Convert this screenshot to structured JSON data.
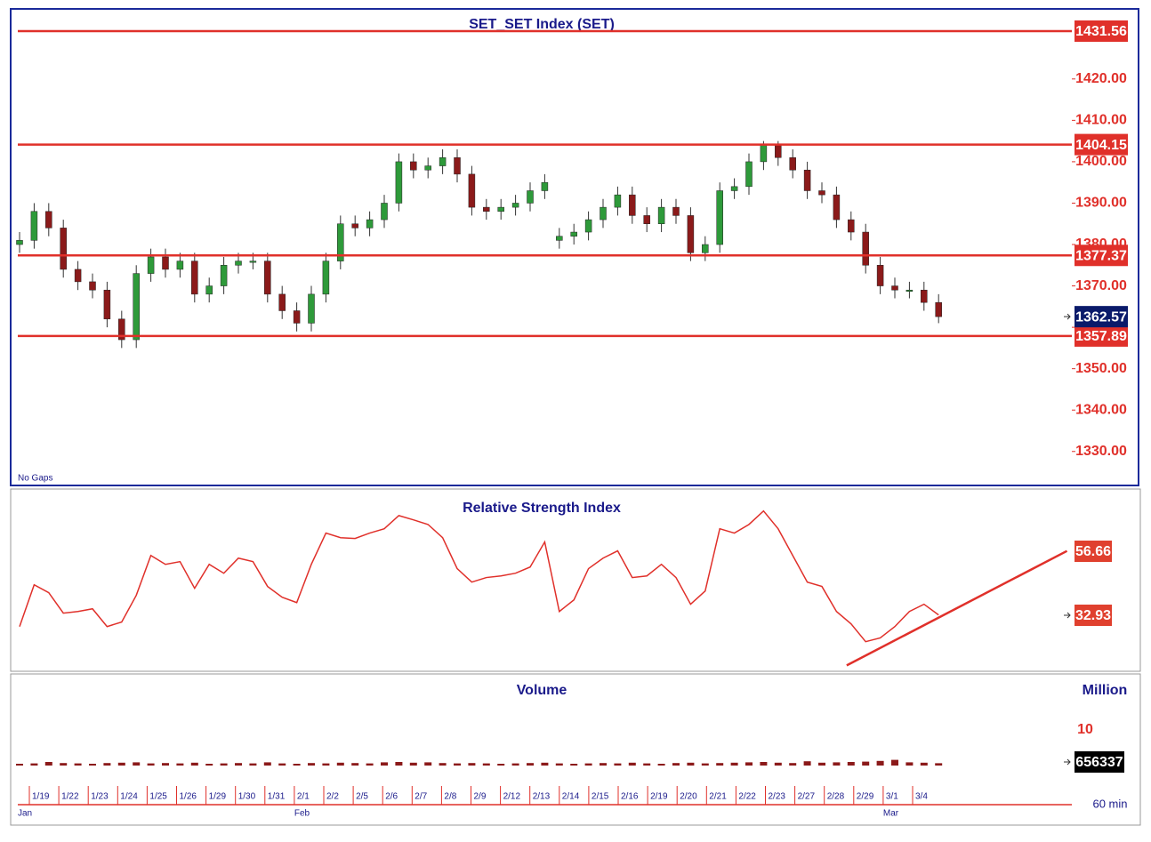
{
  "chart_data": [
    {
      "type": "candlestick",
      "title": "SET_SET Index (SET)",
      "note": "No Gaps",
      "open": [
        1380,
        1381,
        1388,
        1384,
        1374,
        1371,
        1369,
        1362,
        1357,
        1373,
        1377,
        1374,
        1376,
        1368,
        1370,
        1375,
        1376,
        1376,
        1368,
        1364,
        1361,
        1368,
        1376,
        1385,
        1384,
        1386,
        1390,
        1400,
        1398,
        1399,
        1401,
        1397,
        1389,
        1388,
        1389,
        1390,
        1393,
        1381,
        1382,
        1383,
        1386,
        1389,
        1392,
        1387,
        1385,
        1389,
        1387,
        1378,
        1380,
        1393,
        1394,
        1400,
        1404,
        1401,
        1398,
        1393,
        1392,
        1386,
        1383,
        1375,
        1370,
        1369,
        1369,
        1366
      ],
      "high": [
        1383,
        1390,
        1390,
        1386,
        1376,
        1373,
        1371,
        1364,
        1375,
        1379,
        1379,
        1378,
        1378,
        1372,
        1377,
        1378,
        1378,
        1378,
        1370,
        1366,
        1370,
        1378,
        1387,
        1387,
        1388,
        1392,
        1402,
        1402,
        1401,
        1403,
        1403,
        1399,
        1391,
        1391,
        1392,
        1395,
        1397,
        1384,
        1385,
        1388,
        1391,
        1394,
        1394,
        1389,
        1391,
        1391,
        1389,
        1382,
        1395,
        1396,
        1402,
        1405,
        1405,
        1403,
        1400,
        1395,
        1394,
        1388,
        1385,
        1377,
        1372,
        1371,
        1371,
        1368
      ],
      "low": [
        1378,
        1379,
        1382,
        1372,
        1369,
        1367,
        1360,
        1355,
        1355,
        1371,
        1372,
        1372,
        1366,
        1366,
        1368,
        1373,
        1374,
        1366,
        1362,
        1359,
        1359,
        1366,
        1374,
        1382,
        1382,
        1384,
        1388,
        1396,
        1396,
        1397,
        1395,
        1387,
        1386,
        1386,
        1387,
        1388,
        1391,
        1379,
        1380,
        1381,
        1384,
        1387,
        1385,
        1383,
        1383,
        1385,
        1376,
        1376,
        1378,
        1391,
        1392,
        1398,
        1399,
        1396,
        1391,
        1390,
        1384,
        1381,
        1373,
        1368,
        1367,
        1367,
        1364,
        1361
      ],
      "close": [
        1381,
        1388,
        1384,
        1374,
        1371,
        1369,
        1362,
        1357,
        1373,
        1377,
        1374,
        1376,
        1368,
        1370,
        1375,
        1376,
        1376,
        1368,
        1364,
        1361,
        1368,
        1376,
        1385,
        1384,
        1386,
        1390,
        1400,
        1398,
        1399,
        1401,
        1397,
        1389,
        1388,
        1389,
        1390,
        1393,
        1395,
        1382,
        1383,
        1386,
        1389,
        1392,
        1387,
        1385,
        1389,
        1387,
        1378,
        1380,
        1393,
        1394,
        1400,
        1404,
        1401,
        1398,
        1393,
        1392,
        1386,
        1383,
        1375,
        1370,
        1369,
        1369,
        1366,
        1362.57
      ],
      "up_color": "#2e9a3a",
      "down_color": "#8b1a1a",
      "ylim": [
        1322,
        1436.5
      ],
      "yticks": [
        {
          "value": 1330,
          "label": "1330.00"
        },
        {
          "value": 1340,
          "label": "1340.00"
        },
        {
          "value": 1350,
          "label": "1350.00"
        },
        {
          "value": 1360,
          "label": "1360.00"
        },
        {
          "value": 1370,
          "label": "1370.00"
        },
        {
          "value": 1380,
          "label": "1380.00"
        },
        {
          "value": 1390,
          "label": "1390.00"
        },
        {
          "value": 1400,
          "label": "1400.00"
        },
        {
          "value": 1410,
          "label": "1410.00"
        },
        {
          "value": 1420,
          "label": "1420.00"
        }
      ],
      "levels": [
        1431.56,
        1404.15,
        1377.37,
        1357.89
      ],
      "level_color": "#e0302a"
    },
    {
      "type": "line",
      "title": "Relative Strength Index",
      "color": "#e0302a",
      "values": [
        28.6,
        44.1,
        41.2,
        33.6,
        34.2,
        35.2,
        28.6,
        30.3,
        40.2,
        55.0,
        51.7,
        52.7,
        42.8,
        51.7,
        48.4,
        54.0,
        52.7,
        43.5,
        39.5,
        37.5,
        51.7,
        63.3,
        61.6,
        61.3,
        63.3,
        64.9,
        69.8,
        68.2,
        66.5,
        61.6,
        50.1,
        45.1,
        46.8,
        47.4,
        48.4,
        50.7,
        60.0,
        34.2,
        38.5,
        50.1,
        54.0,
        56.7,
        46.8,
        47.4,
        51.7,
        46.8,
        36.9,
        41.8,
        64.9,
        63.3,
        66.5,
        71.5,
        64.9,
        55.0,
        45.1,
        43.5,
        34.2,
        29.6,
        23.0,
        24.4,
        28.6,
        34.2,
        36.9,
        32.93
      ],
      "ylim": [
        13,
        78
      ],
      "trendline": {
        "x": [
          56.7,
          71.8
        ],
        "values": [
          14.2,
          56.66
        ]
      }
    },
    {
      "type": "bar",
      "title": "Volume",
      "unit": "Million",
      "color": "#8b1a1a",
      "values": [
        0.5,
        0.6,
        1.0,
        0.7,
        0.6,
        0.5,
        0.7,
        0.8,
        0.9,
        0.6,
        0.7,
        0.6,
        0.8,
        0.5,
        0.6,
        0.7,
        0.6,
        0.9,
        0.6,
        0.5,
        0.7,
        0.6,
        0.8,
        0.7,
        0.6,
        0.9,
        1.0,
        0.8,
        0.9,
        0.7,
        0.6,
        0.7,
        0.6,
        0.5,
        0.6,
        0.7,
        0.8,
        0.6,
        0.5,
        0.6,
        0.7,
        0.6,
        0.8,
        0.6,
        0.5,
        0.7,
        0.8,
        0.6,
        0.7,
        0.8,
        0.9,
        1.0,
        0.8,
        0.7,
        1.2,
        0.8,
        0.9,
        1.0,
        1.1,
        1.3,
        1.6,
        0.9,
        0.8,
        0.656337
      ],
      "ylim": [
        0,
        10
      ],
      "yticks": [
        10
      ],
      "current": {
        "value": 0.656337,
        "label": "656337"
      }
    }
  ],
  "x_axis": {
    "days": [
      "1/19",
      "1/22",
      "1/23",
      "1/24",
      "1/25",
      "1/26",
      "1/29",
      "1/30",
      "1/31",
      "2/1",
      "2/2",
      "2/5",
      "2/6",
      "2/7",
      "2/8",
      "2/9",
      "2/12",
      "2/13",
      "2/14",
      "2/15",
      "2/16",
      "2/19",
      "2/20",
      "2/21",
      "2/22",
      "2/23",
      "2/27",
      "2/28",
      "2/29",
      "3/1",
      "3/4"
    ],
    "months": [
      "Jan",
      null,
      null,
      null,
      null,
      null,
      null,
      null,
      null,
      "Feb",
      null,
      null,
      null,
      null,
      null,
      null,
      null,
      null,
      null,
      null,
      null,
      null,
      null,
      null,
      null,
      null,
      null,
      null,
      null,
      "Mar",
      null
    ],
    "interval": "60 min"
  }
}
